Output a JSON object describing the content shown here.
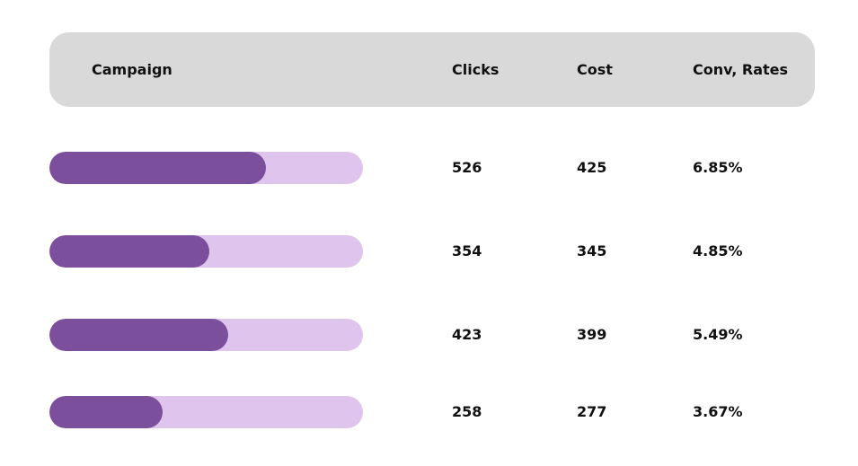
{
  "header": {
    "campaign": "Campaign",
    "clicks": "Clicks",
    "cost": "Cost",
    "conv_rates": "Conv, Rates"
  },
  "colors": {
    "header_bg": "#d9d9d9",
    "bar_track": "#dfc5ee",
    "bar_fill": "#7c4f9d"
  },
  "rows": [
    {
      "progress": 0.69,
      "clicks": "526",
      "cost": "425",
      "conv_rate": "6.85%"
    },
    {
      "progress": 0.51,
      "clicks": "354",
      "cost": "345",
      "conv_rate": "4.85%"
    },
    {
      "progress": 0.57,
      "clicks": "423",
      "cost": "399",
      "conv_rate": "5.49%"
    },
    {
      "progress": 0.36,
      "clicks": "258",
      "cost": "277",
      "conv_rate": "3.67%"
    }
  ]
}
